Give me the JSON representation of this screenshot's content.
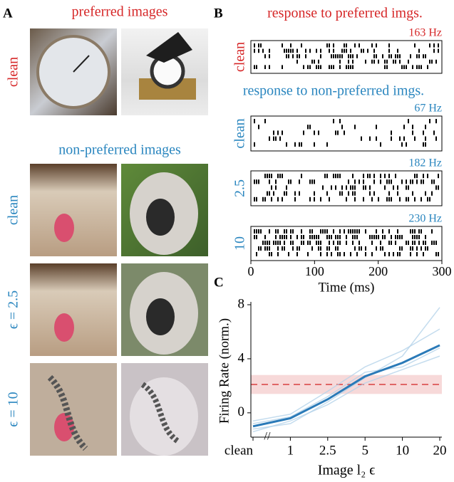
{
  "panel_a": {
    "letter": "A",
    "preferred_title": "preferred images",
    "preferred_row": "clean",
    "nonpreferred_title": "non-preferred images",
    "rows": [
      "clean",
      "ϵ = 2.5",
      "ϵ = 10"
    ]
  },
  "panel_b": {
    "letter": "B",
    "preferred_title": "response to preferred imgs.",
    "nonpreferred_title": "response to non-preferred imgs."
  },
  "panel_c": {
    "letter": "C"
  },
  "chart_data": [
    {
      "type": "raster",
      "xlim": [
        0,
        300
      ],
      "xticks": [
        0,
        100,
        200,
        300
      ],
      "xlabel": "Time (ms)",
      "rows": [
        {
          "label": "clean",
          "rate": "163 Hz",
          "color": "#d62728"
        },
        {
          "label": "clean",
          "rate": "67 Hz",
          "color": "#2a86bf"
        },
        {
          "label": "2.5",
          "rate": "182 Hz",
          "color": "#2a86bf"
        },
        {
          "label": "10",
          "rate": "230 Hz",
          "color": "#2a86bf"
        }
      ]
    },
    {
      "type": "line",
      "ylabel": "Firing Rate (norm.)",
      "xlabel": "Image l₂ ϵ",
      "categories": [
        "clean",
        "1",
        "2.5",
        "5",
        "10",
        "20"
      ],
      "ylim": [
        -1.8,
        8
      ],
      "yticks": [
        0,
        4,
        8
      ],
      "reference": {
        "value": 2.1,
        "band": [
          1.4,
          2.8
        ],
        "color": "#e06666"
      },
      "series": [
        {
          "color": "#b5d3ea",
          "values": [
            -1.4,
            -0.6,
            0.6,
            2.2,
            3.2,
            4.2
          ]
        },
        {
          "color": "#b5d3ea",
          "values": [
            -0.6,
            -0.1,
            1.6,
            3.4,
            4.6,
            6.2
          ]
        },
        {
          "color": "#b5d3ea",
          "values": [
            -1.2,
            -0.8,
            0.8,
            2.6,
            4.2,
            7.8
          ]
        },
        {
          "color": "#b5d3ea",
          "values": [
            -0.8,
            -0.3,
            1.2,
            3.0,
            3.4,
            4.8
          ]
        },
        {
          "color": "#2a7ab8",
          "values": [
            -1.0,
            -0.4,
            1.0,
            2.7,
            3.7,
            5.0
          ]
        }
      ]
    }
  ]
}
